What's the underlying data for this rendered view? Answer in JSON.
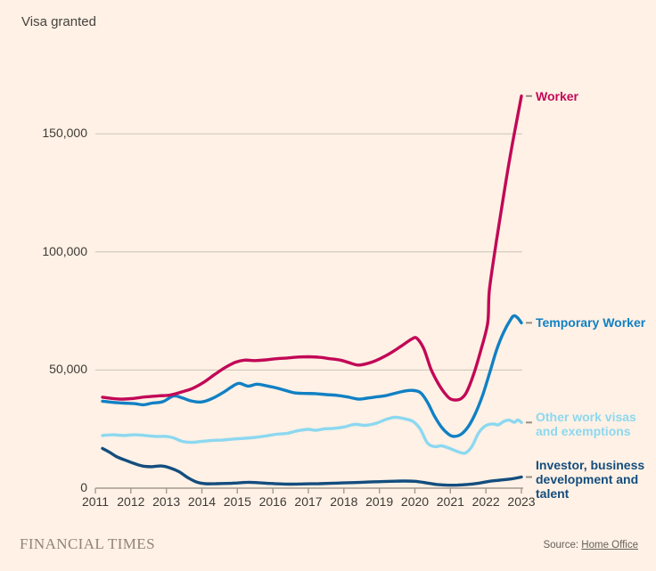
{
  "title": "Visa granted",
  "footer": {
    "brand": "FINANCIAL TIMES",
    "source_prefix": "Source: ",
    "source_link": "Home Office"
  },
  "colors": {
    "background": "#FFF1E5",
    "text": "#3E3A36",
    "title_text": "#46423D",
    "brand_text": "#8E8577",
    "source_text": "#655F5A"
  },
  "chart_data": {
    "type": "line",
    "title": "Visa granted",
    "grid": true,
    "legend_position": "right-of-line-ends",
    "colors": {
      "grid": "#CCC2B7",
      "axis": "#A49B90",
      "annotation_dash": "#988F85"
    },
    "x_axis": {
      "min": 2011,
      "max": 2023,
      "ticks": [
        2011,
        2012,
        2013,
        2014,
        2015,
        2016,
        2017,
        2018,
        2019,
        2020,
        2021,
        2022,
        2023
      ],
      "labels": [
        "2011",
        "2012",
        "2013",
        "2014",
        "2015",
        "2016",
        "2017",
        "2018",
        "2019",
        "2020",
        "2021",
        "2022",
        "2023"
      ]
    },
    "y_axis": {
      "min": 0,
      "max": 175000,
      "ticks": [
        0,
        50000,
        100000,
        150000
      ],
      "tick_labels": [
        "0",
        "50,000",
        "100,000",
        "150,000"
      ]
    },
    "series": [
      {
        "name": "Worker",
        "color": "#C20857",
        "label_lines": [
          "Worker"
        ],
        "points": [
          [
            2011.2,
            38500
          ],
          [
            2011.45,
            38000
          ],
          [
            2011.7,
            37700
          ],
          [
            2012,
            37900
          ],
          [
            2012.4,
            38600
          ],
          [
            2012.8,
            39100
          ],
          [
            2013.1,
            39400
          ],
          [
            2013.45,
            40800
          ],
          [
            2013.75,
            42300
          ],
          [
            2014.05,
            44800
          ],
          [
            2014.35,
            48000
          ],
          [
            2014.65,
            51000
          ],
          [
            2014.95,
            53300
          ],
          [
            2015.2,
            54200
          ],
          [
            2015.5,
            54000
          ],
          [
            2015.8,
            54300
          ],
          [
            2016.1,
            54800
          ],
          [
            2016.4,
            55100
          ],
          [
            2016.7,
            55500
          ],
          [
            2017,
            55600
          ],
          [
            2017.3,
            55400
          ],
          [
            2017.6,
            54800
          ],
          [
            2017.9,
            54200
          ],
          [
            2018.15,
            53100
          ],
          [
            2018.4,
            52100
          ],
          [
            2018.65,
            52700
          ],
          [
            2018.9,
            54000
          ],
          [
            2019.15,
            55800
          ],
          [
            2019.4,
            58000
          ],
          [
            2019.65,
            60500
          ],
          [
            2019.9,
            63000
          ],
          [
            2020.05,
            63500
          ],
          [
            2020.25,
            59000
          ],
          [
            2020.45,
            50500
          ],
          [
            2020.65,
            44500
          ],
          [
            2020.85,
            40000
          ],
          [
            2021,
            37800
          ],
          [
            2021.15,
            37300
          ],
          [
            2021.3,
            37900
          ],
          [
            2021.45,
            40500
          ],
          [
            2021.65,
            48000
          ],
          [
            2021.85,
            58000
          ],
          [
            2022.05,
            70000
          ],
          [
            2022.1,
            84000
          ],
          [
            2022.3,
            105000
          ],
          [
            2022.5,
            124000
          ],
          [
            2022.7,
            142000
          ],
          [
            2022.85,
            154000
          ],
          [
            2023,
            166000
          ]
        ]
      },
      {
        "name": "Temporary Worker",
        "color": "#1180C4",
        "label_lines": [
          "Temporary Worker"
        ],
        "points": [
          [
            2011.2,
            36800
          ],
          [
            2011.5,
            36300
          ],
          [
            2011.8,
            36000
          ],
          [
            2012.1,
            35800
          ],
          [
            2012.35,
            35300
          ],
          [
            2012.6,
            36000
          ],
          [
            2012.9,
            36600
          ],
          [
            2013.2,
            39000
          ],
          [
            2013.45,
            38200
          ],
          [
            2013.7,
            36900
          ],
          [
            2014,
            36500
          ],
          [
            2014.3,
            38000
          ],
          [
            2014.6,
            40500
          ],
          [
            2014.85,
            43000
          ],
          [
            2015.05,
            44400
          ],
          [
            2015.3,
            43200
          ],
          [
            2015.55,
            44000
          ],
          [
            2015.8,
            43400
          ],
          [
            2016.05,
            42600
          ],
          [
            2016.3,
            41600
          ],
          [
            2016.6,
            40400
          ],
          [
            2016.9,
            40100
          ],
          [
            2017.2,
            40000
          ],
          [
            2017.5,
            39600
          ],
          [
            2017.8,
            39300
          ],
          [
            2018.1,
            38600
          ],
          [
            2018.4,
            37700
          ],
          [
            2018.65,
            38100
          ],
          [
            2018.9,
            38600
          ],
          [
            2019.15,
            39100
          ],
          [
            2019.4,
            40000
          ],
          [
            2019.65,
            40900
          ],
          [
            2019.9,
            41400
          ],
          [
            2020.15,
            40500
          ],
          [
            2020.35,
            36500
          ],
          [
            2020.55,
            30500
          ],
          [
            2020.75,
            25800
          ],
          [
            2020.95,
            22800
          ],
          [
            2021.1,
            21900
          ],
          [
            2021.3,
            22800
          ],
          [
            2021.5,
            26000
          ],
          [
            2021.7,
            31500
          ],
          [
            2021.9,
            39000
          ],
          [
            2022.1,
            48500
          ],
          [
            2022.3,
            58500
          ],
          [
            2022.5,
            66000
          ],
          [
            2022.7,
            71500
          ],
          [
            2022.8,
            73000
          ],
          [
            2022.9,
            72000
          ],
          [
            2023,
            70000
          ]
        ]
      },
      {
        "name": "Other work visas and exemptions",
        "color": "#8CD8F0",
        "label_lines": [
          "Other work visas",
          "and exemptions"
        ],
        "points": [
          [
            2011.2,
            22300
          ],
          [
            2011.5,
            22600
          ],
          [
            2011.8,
            22300
          ],
          [
            2012.1,
            22600
          ],
          [
            2012.4,
            22300
          ],
          [
            2012.7,
            21900
          ],
          [
            2013,
            21900
          ],
          [
            2013.2,
            21300
          ],
          [
            2013.45,
            19800
          ],
          [
            2013.7,
            19400
          ],
          [
            2014,
            19800
          ],
          [
            2014.3,
            20200
          ],
          [
            2014.6,
            20400
          ],
          [
            2014.9,
            20800
          ],
          [
            2015.2,
            21100
          ],
          [
            2015.5,
            21500
          ],
          [
            2015.8,
            22100
          ],
          [
            2016.1,
            22800
          ],
          [
            2016.4,
            23200
          ],
          [
            2016.7,
            24300
          ],
          [
            2017,
            24900
          ],
          [
            2017.2,
            24500
          ],
          [
            2017.45,
            25100
          ],
          [
            2017.7,
            25300
          ],
          [
            2018,
            25900
          ],
          [
            2018.3,
            27000
          ],
          [
            2018.6,
            26600
          ],
          [
            2018.9,
            27400
          ],
          [
            2019.2,
            29200
          ],
          [
            2019.45,
            30000
          ],
          [
            2019.7,
            29400
          ],
          [
            2019.95,
            28200
          ],
          [
            2020.15,
            25000
          ],
          [
            2020.35,
            19200
          ],
          [
            2020.55,
            17600
          ],
          [
            2020.75,
            17900
          ],
          [
            2020.95,
            17000
          ],
          [
            2021.15,
            15800
          ],
          [
            2021.4,
            14800
          ],
          [
            2021.6,
            17500
          ],
          [
            2021.8,
            23500
          ],
          [
            2022,
            26500
          ],
          [
            2022.2,
            27200
          ],
          [
            2022.35,
            26800
          ],
          [
            2022.5,
            28200
          ],
          [
            2022.65,
            28800
          ],
          [
            2022.8,
            27900
          ],
          [
            2022.9,
            28900
          ],
          [
            2023,
            27800
          ]
        ]
      },
      {
        "name": "Investor, business development and talent",
        "color": "#134D7E",
        "label_lines": [
          "Investor, business",
          "development and",
          "talent"
        ],
        "points": [
          [
            2011.2,
            16800
          ],
          [
            2011.4,
            15200
          ],
          [
            2011.6,
            13300
          ],
          [
            2011.85,
            11800
          ],
          [
            2012.1,
            10400
          ],
          [
            2012.35,
            9300
          ],
          [
            2012.6,
            9100
          ],
          [
            2012.85,
            9400
          ],
          [
            2013.1,
            8600
          ],
          [
            2013.35,
            7000
          ],
          [
            2013.6,
            4500
          ],
          [
            2013.85,
            2600
          ],
          [
            2014.1,
            1900
          ],
          [
            2014.4,
            1900
          ],
          [
            2014.7,
            2000
          ],
          [
            2015,
            2200
          ],
          [
            2015.3,
            2500
          ],
          [
            2015.6,
            2300
          ],
          [
            2015.9,
            2000
          ],
          [
            2016.2,
            1800
          ],
          [
            2016.5,
            1700
          ],
          [
            2016.9,
            1800
          ],
          [
            2017.3,
            1900
          ],
          [
            2017.7,
            2100
          ],
          [
            2018.1,
            2300
          ],
          [
            2018.5,
            2500
          ],
          [
            2018.9,
            2700
          ],
          [
            2019.3,
            2900
          ],
          [
            2019.7,
            3000
          ],
          [
            2020,
            2900
          ],
          [
            2020.3,
            2300
          ],
          [
            2020.6,
            1600
          ],
          [
            2020.9,
            1300
          ],
          [
            2021.2,
            1300
          ],
          [
            2021.5,
            1600
          ],
          [
            2021.8,
            2100
          ],
          [
            2022.1,
            2900
          ],
          [
            2022.4,
            3400
          ],
          [
            2022.7,
            3900
          ],
          [
            2023,
            4700
          ]
        ]
      }
    ]
  }
}
